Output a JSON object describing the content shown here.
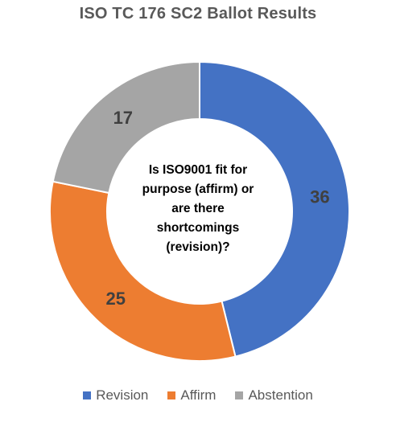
{
  "chart_data": {
    "type": "pie",
    "donut": true,
    "title": "ISO TC 176 SC2 Ballot Results",
    "center_text_lines": [
      "Is ISO9001 fit for",
      "purpose (affirm) or",
      "are there",
      "shortcomings",
      "(revision)?"
    ],
    "categories": [
      "Revision",
      "Affirm",
      "Abstention"
    ],
    "values": [
      36,
      25,
      17
    ],
    "colors": [
      "#4472C4",
      "#ED7D31",
      "#A5A5A5"
    ],
    "legend_position": "bottom"
  }
}
